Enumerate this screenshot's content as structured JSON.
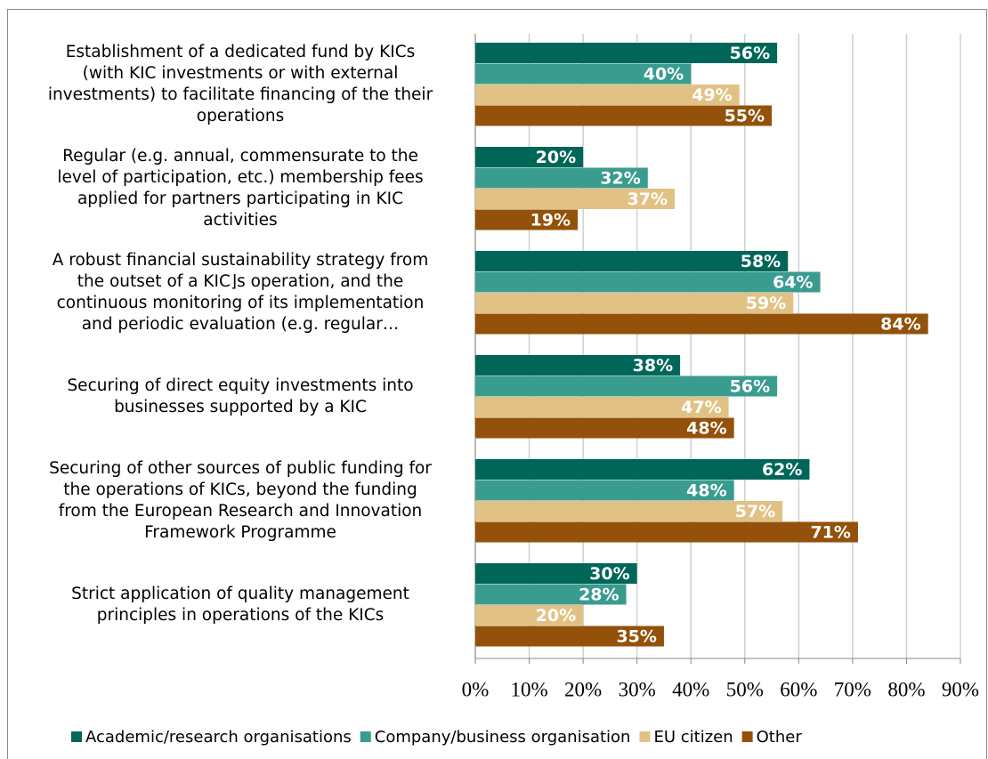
{
  "chart_data": {
    "type": "bar",
    "orientation": "horizontal",
    "categories": [
      "Establishment of a dedicated fund by KICs\n(with KIC investments or with external\ninvestments) to facilitate financing of the their\noperations",
      "Regular (e.g. annual, commensurate to the\nlevel of participation, etc.) membership fees\napplied for partners participating in KIC\nactivities",
      "A robust financial sustainability strategy from\nthe outset of a KIC⌋s operation, and the\ncontinuous monitoring of its implementation\nand periodic evaluation (e.g. regular…",
      "Securing of direct equity investments into\nbusinesses supported by a KIC",
      "Securing of other sources of public funding for\nthe operations of KICs, beyond the funding\nfrom the European Research and Innovation\nFramework Programme",
      "Strict application of quality management\nprinciples in operations of the KICs"
    ],
    "series": [
      {
        "name": "Academic/research organisations",
        "color": "#006658",
        "values": [
          56,
          20,
          58,
          38,
          62,
          30
        ],
        "value_labels": [
          "56%",
          "20%",
          "58%",
          "38%",
          "62%",
          "30%"
        ]
      },
      {
        "name": "Company/business organisation",
        "color": "#3a9b8f",
        "values": [
          40,
          32,
          64,
          56,
          48,
          28
        ],
        "value_labels": [
          "40%",
          "32%",
          "64%",
          "56%",
          "48%",
          "28%"
        ]
      },
      {
        "name": "EU citizen",
        "color": "#e2c284",
        "values": [
          49,
          37,
          59,
          47,
          57,
          20
        ],
        "value_labels": [
          "49%",
          "37%",
          "59%",
          "47%",
          "57%",
          "20%"
        ]
      },
      {
        "name": "Other",
        "color": "#935109",
        "values": [
          55,
          19,
          84,
          48,
          71,
          35
        ],
        "value_labels": [
          "55%",
          "19%",
          "84%",
          "48%",
          "71%",
          "35%"
        ]
      }
    ],
    "xlim": [
      0,
      90
    ],
    "xticks": [
      {
        "value": 0,
        "label": "0%"
      },
      {
        "value": 10,
        "label": "10%"
      },
      {
        "value": 20,
        "label": "20%"
      },
      {
        "value": 30,
        "label": "30%"
      },
      {
        "value": 40,
        "label": "40%"
      },
      {
        "value": 50,
        "label": "50%"
      },
      {
        "value": 60,
        "label": "60%"
      },
      {
        "value": 70,
        "label": "70%"
      },
      {
        "value": 80,
        "label": "80%"
      },
      {
        "value": 90,
        "label": "90%"
      }
    ],
    "grid": true,
    "legend": "bottom"
  }
}
